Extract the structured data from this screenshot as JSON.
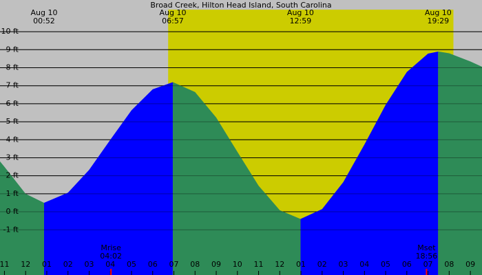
{
  "chart_data": {
    "type": "tide-area",
    "title": "Broad Creek, Hilton Head Island, South Carolina",
    "x": [
      -1.21,
      -1,
      0,
      0.87,
      2,
      3,
      4,
      5,
      6,
      6.95,
      8,
      9,
      10,
      11,
      12,
      12.98,
      14,
      15,
      16,
      17,
      18,
      19,
      19.48,
      20,
      21,
      21.55
    ],
    "values": [
      2.8,
      2.5,
      1.0,
      0.5,
      1.06,
      2.33,
      4.0,
      5.64,
      6.8,
      7.2,
      6.65,
      5.23,
      3.33,
      1.45,
      0.09,
      -0.4,
      0.15,
      1.65,
      3.74,
      5.94,
      7.76,
      8.78,
      8.9,
      8.8,
      8.35,
      8.05
    ],
    "rising_color": "#0000ff",
    "falling_color": "#2e8b57",
    "background_color": "#c0c0c0",
    "daylight_color": "#cccc00",
    "daylight": [
      6.73,
      20.2
    ],
    "xlim": [
      -1.21,
      21.55
    ],
    "ylim": [
      -3.51,
      11.76
    ],
    "grid": true,
    "yticks": [
      {
        "value": -1,
        "label": "-1 ft"
      },
      {
        "value": 0,
        "label": "0 ft"
      },
      {
        "value": 1,
        "label": "1 ft"
      },
      {
        "value": 2,
        "label": "2 ft"
      },
      {
        "value": 3,
        "label": "3 ft"
      },
      {
        "value": 4,
        "label": "4 ft"
      },
      {
        "value": 5,
        "label": "5 ft"
      },
      {
        "value": 6,
        "label": "6 ft"
      },
      {
        "value": 7,
        "label": "7 ft"
      },
      {
        "value": 8,
        "label": "8 ft"
      },
      {
        "value": 9,
        "label": "9 ft"
      },
      {
        "value": 10,
        "label": "10 ft"
      }
    ],
    "xticks": [
      {
        "value": -1,
        "label": "11"
      },
      {
        "value": 0,
        "label": "12"
      },
      {
        "value": 1,
        "label": "01"
      },
      {
        "value": 2,
        "label": "02"
      },
      {
        "value": 3,
        "label": "03"
      },
      {
        "value": 4,
        "label": "04"
      },
      {
        "value": 5,
        "label": "05"
      },
      {
        "value": 6,
        "label": "06"
      },
      {
        "value": 7,
        "label": "07"
      },
      {
        "value": 8,
        "label": "08"
      },
      {
        "value": 9,
        "label": "09"
      },
      {
        "value": 10,
        "label": "10"
      },
      {
        "value": 11,
        "label": "11"
      },
      {
        "value": 12,
        "label": "12"
      },
      {
        "value": 13,
        "label": "01"
      },
      {
        "value": 14,
        "label": "02"
      },
      {
        "value": 15,
        "label": "03"
      },
      {
        "value": 16,
        "label": "04"
      },
      {
        "value": 17,
        "label": "05"
      },
      {
        "value": 18,
        "label": "06"
      },
      {
        "value": 19,
        "label": "07"
      },
      {
        "value": 20,
        "label": "08"
      },
      {
        "value": 21,
        "label": "09"
      }
    ],
    "events": [
      {
        "date": "Aug 10",
        "time": "00:52",
        "x": 0.87
      },
      {
        "date": "Aug 10",
        "time": "06:57",
        "x": 6.95
      },
      {
        "date": "Aug 10",
        "time": "12:59",
        "x": 12.98
      },
      {
        "date": "Aug 10",
        "time": "19:29",
        "x": 19.48
      }
    ],
    "moon": [
      {
        "label": "Mrise",
        "time": "04:02",
        "x": 4.03
      },
      {
        "label": "Mset",
        "time": "18:56",
        "x": 18.93
      }
    ]
  }
}
